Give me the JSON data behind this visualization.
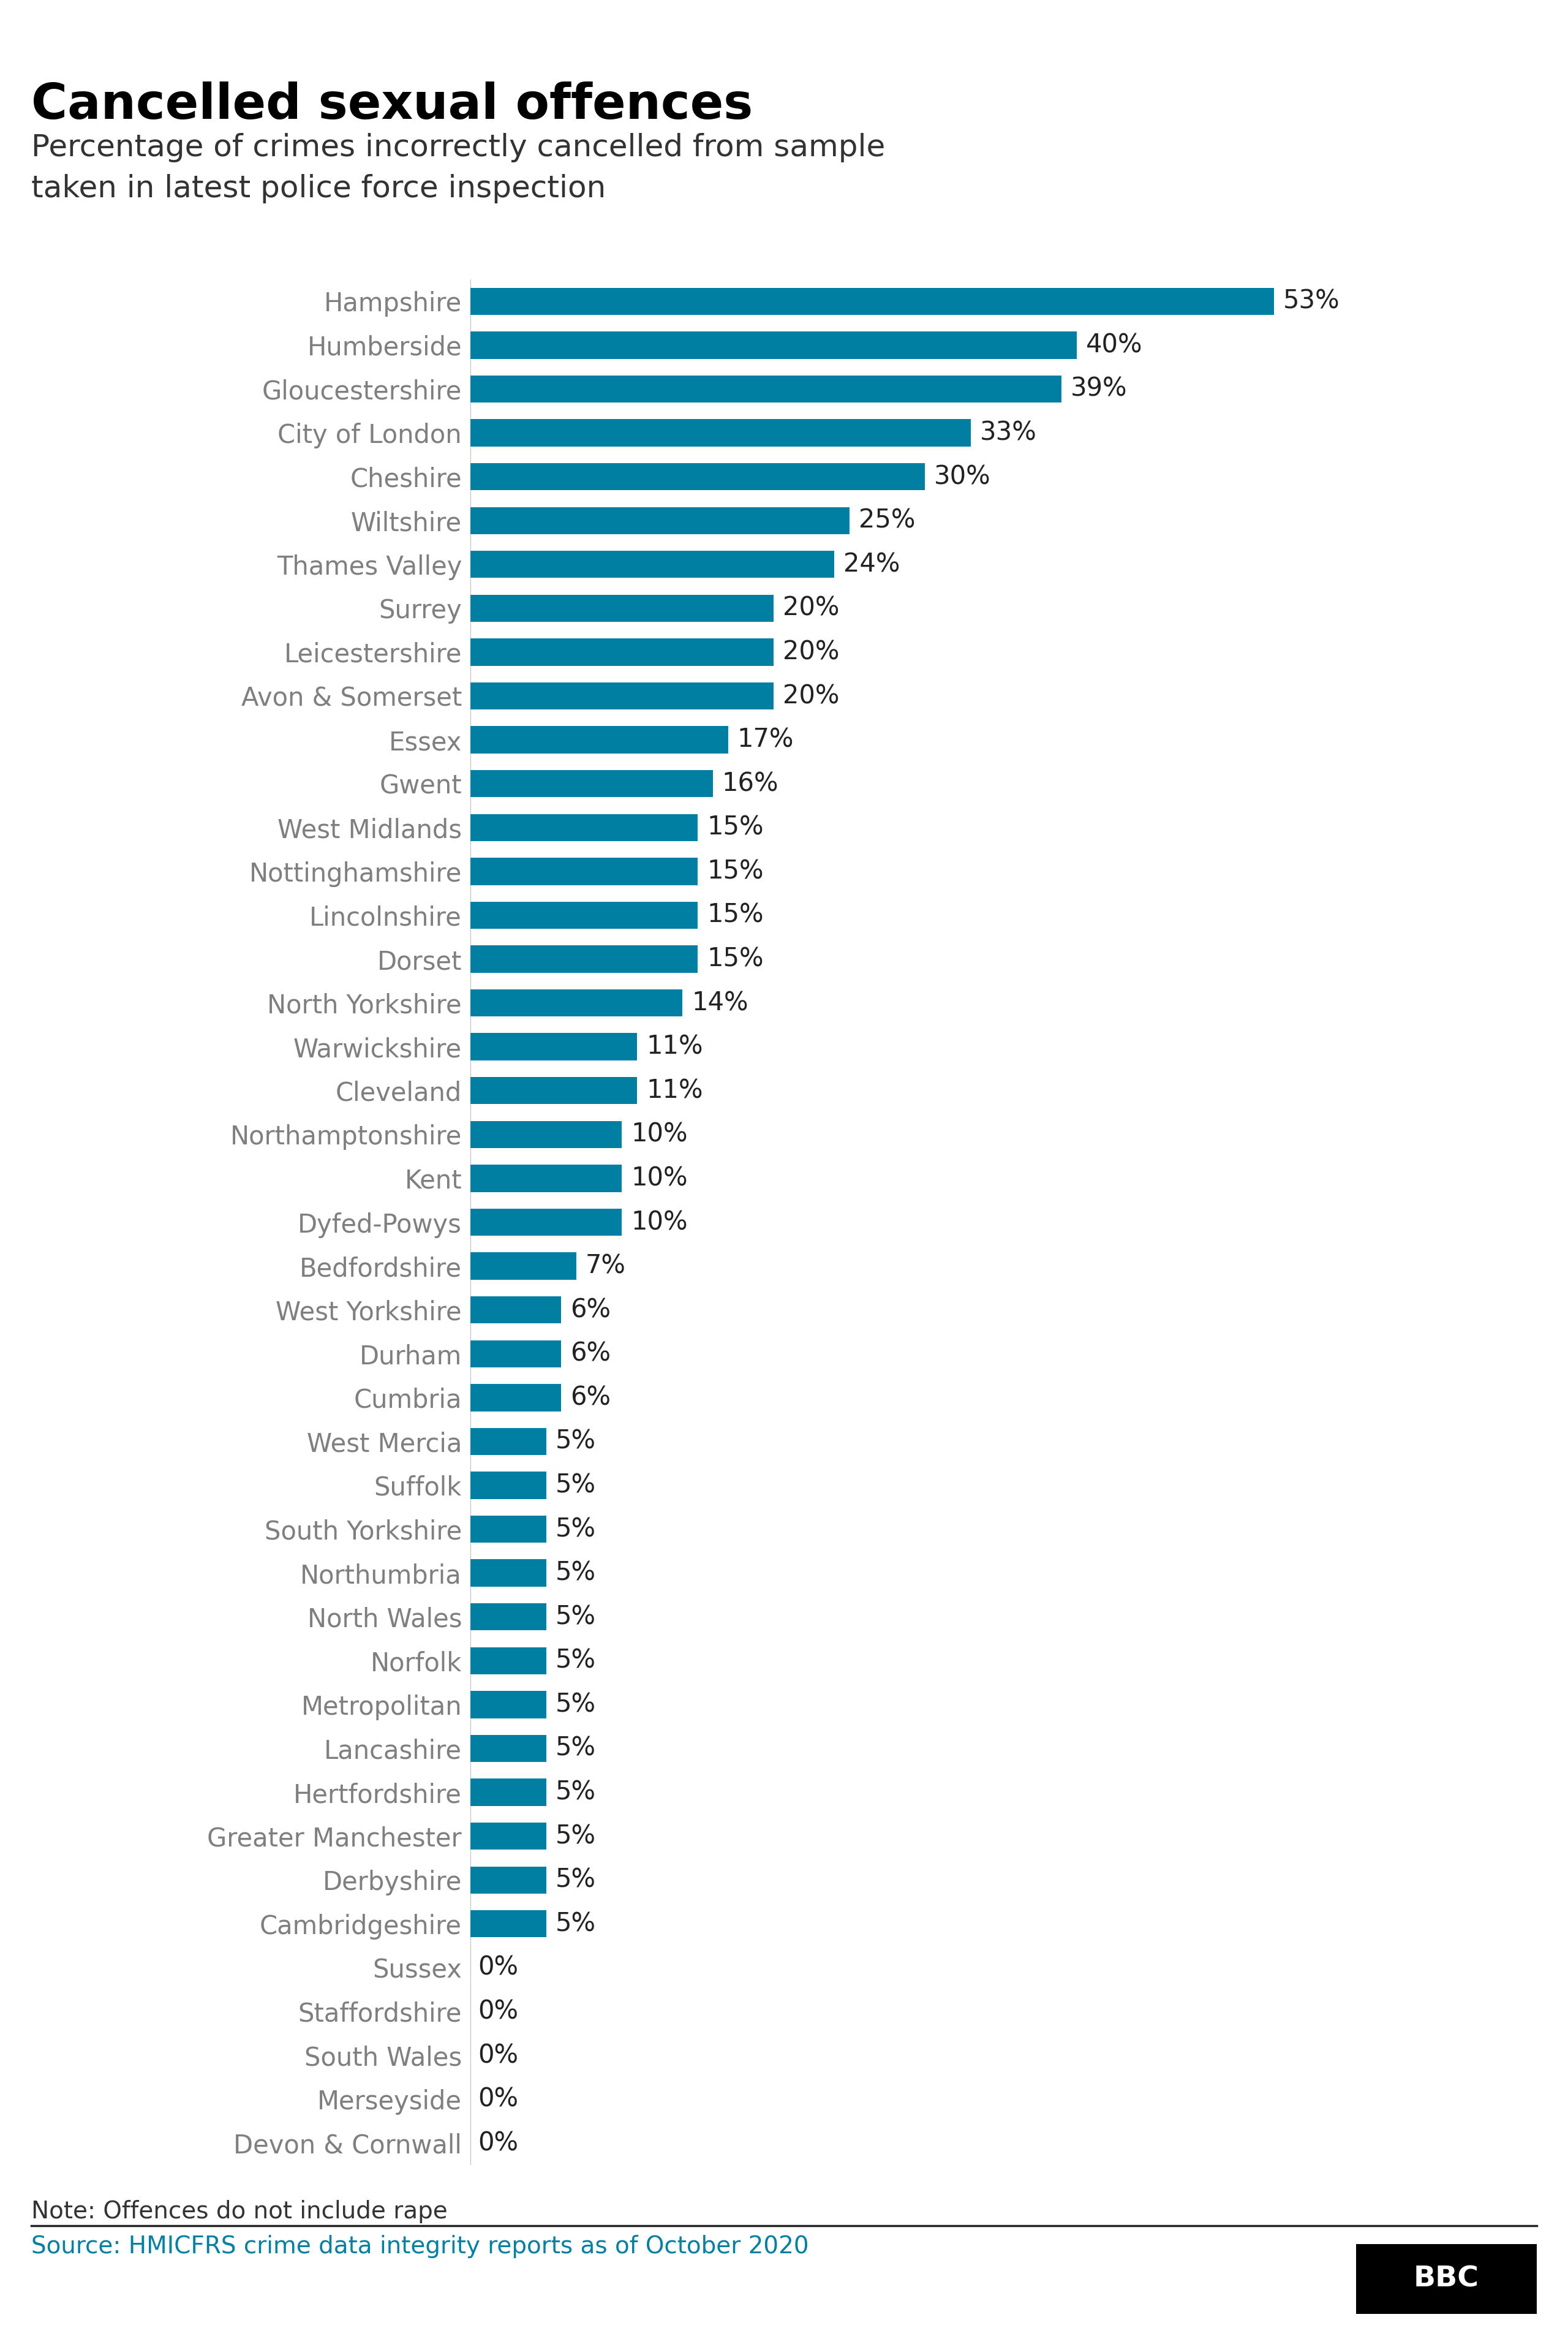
{
  "title": "Cancelled sexual offences",
  "subtitle": "Percentage of crimes incorrectly cancelled from sample\ntaken in latest police force inspection",
  "note": "Note: Offences do not include rape",
  "source": "Source: HMICFRS crime data integrity reports as of October 2020",
  "categories": [
    "Hampshire",
    "Humberside",
    "Gloucestershire",
    "City of London",
    "Cheshire",
    "Wiltshire",
    "Thames Valley",
    "Surrey",
    "Leicestershire",
    "Avon & Somerset",
    "Essex",
    "Gwent",
    "West Midlands",
    "Nottinghamshire",
    "Lincolnshire",
    "Dorset",
    "North Yorkshire",
    "Warwickshire",
    "Cleveland",
    "Northamptonshire",
    "Kent",
    "Dyfed-Powys",
    "Bedfordshire",
    "West Yorkshire",
    "Durham",
    "Cumbria",
    "West Mercia",
    "Suffolk",
    "South Yorkshire",
    "Northumbria",
    "North Wales",
    "Norfolk",
    "Metropolitan",
    "Lancashire",
    "Hertfordshire",
    "Greater Manchester",
    "Derbyshire",
    "Cambridgeshire",
    "Sussex",
    "Staffordshire",
    "South Wales",
    "Merseyside",
    "Devon & Cornwall"
  ],
  "values": [
    53,
    40,
    39,
    33,
    30,
    25,
    24,
    20,
    20,
    20,
    17,
    16,
    15,
    15,
    15,
    15,
    14,
    11,
    11,
    10,
    10,
    10,
    7,
    6,
    6,
    6,
    5,
    5,
    5,
    5,
    5,
    5,
    5,
    5,
    5,
    5,
    5,
    5,
    0,
    0,
    0,
    0,
    0
  ],
  "bar_color": "#007fa3",
  "label_color": "#7f7f7f",
  "value_color": "#222222",
  "title_color": "#000000",
  "subtitle_color": "#333333",
  "note_color": "#333333",
  "source_color": "#007fa3",
  "background_color": "#ffffff",
  "xlim": [
    0,
    60
  ],
  "bar_height": 0.62,
  "label_fontsize": 30,
  "value_fontsize": 30,
  "title_fontsize": 58,
  "subtitle_fontsize": 36,
  "note_fontsize": 28,
  "source_fontsize": 28
}
